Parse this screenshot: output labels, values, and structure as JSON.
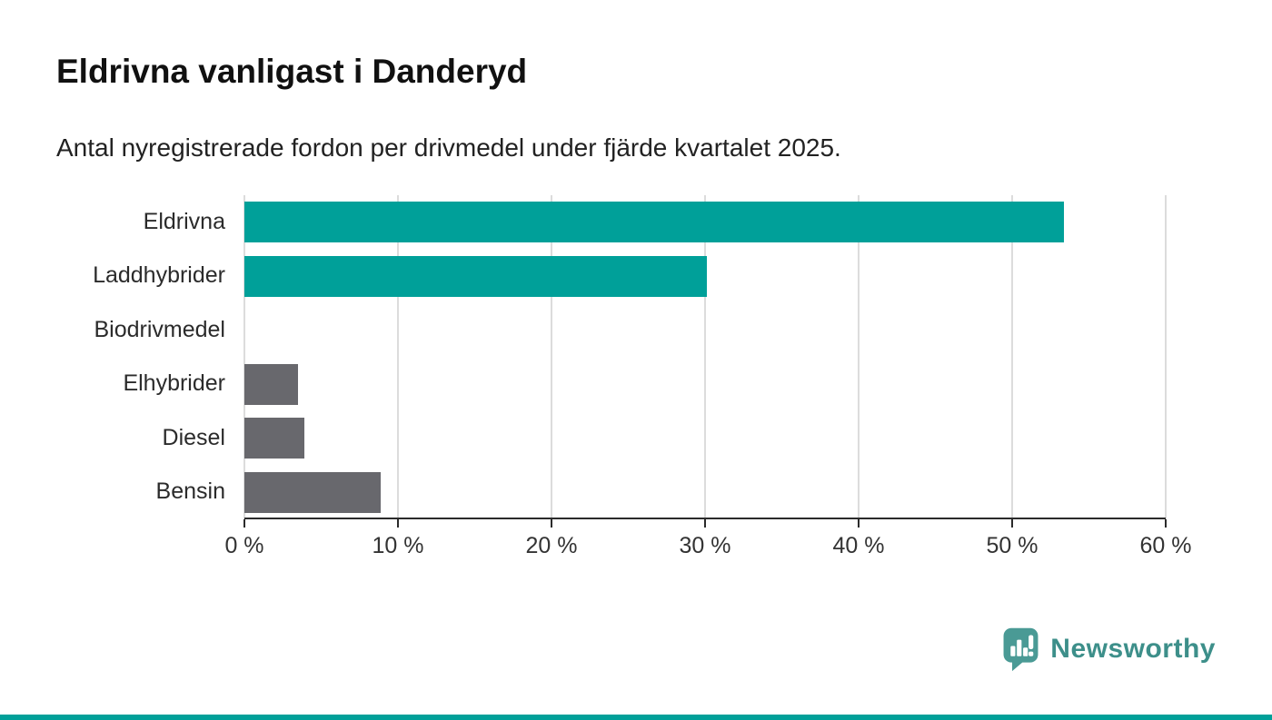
{
  "header": {
    "title": "Eldrivna vanligast i Danderyd",
    "subtitle": "Antal nyregistrerade fordon per drivmedel under fjärde kvartalet 2025."
  },
  "chart_data": {
    "type": "bar",
    "orientation": "horizontal",
    "title": "Eldrivna vanligast i Danderyd",
    "subtitle": "Antal nyregistrerade fordon per drivmedel under fjärde kvartalet 2025.",
    "categories": [
      "Eldrivna",
      "Laddhybrider",
      "Biodrivmedel",
      "Elhybrider",
      "Diesel",
      "Bensin"
    ],
    "values": [
      53.4,
      30.1,
      0,
      3.5,
      3.9,
      8.9
    ],
    "unit": "%",
    "bar_colors": [
      "#00a099",
      "#00a099",
      "#00a099",
      "#68686d",
      "#68686d",
      "#68686d"
    ],
    "xlim": [
      0,
      60
    ],
    "x_tick_labels": [
      "0 %",
      "10 %",
      "20 %",
      "30 %",
      "40 %",
      "50 %",
      "60 %"
    ],
    "x_tick_values": [
      0,
      10,
      20,
      30,
      40,
      50,
      60
    ],
    "grid": true,
    "legend": false
  },
  "branding": {
    "logo_text": "Newsworthy",
    "logo_color": "#4a9a95",
    "logo_text_color": "#3d8f8a",
    "accent_teal": "#00a099",
    "bar_gray": "#68686d"
  }
}
